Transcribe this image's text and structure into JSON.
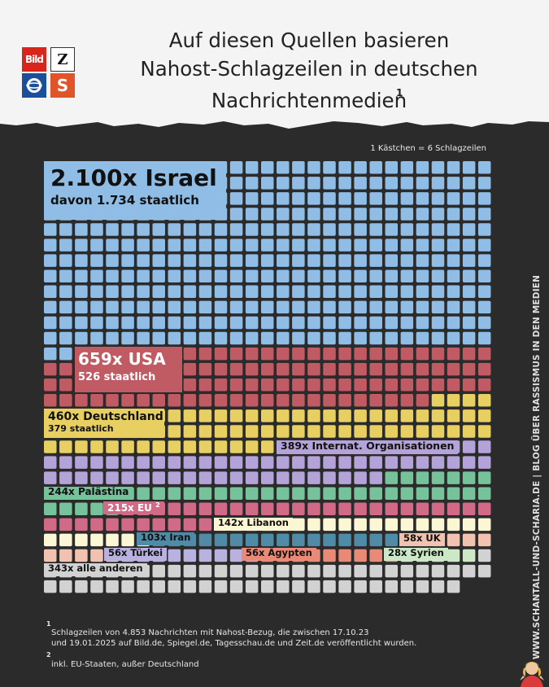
{
  "header": {
    "title_lines": [
      "Auf diesen Quellen basieren",
      "Nahost-Schlagzeilen in deutschen",
      "Nachrichtenmedien"
    ],
    "title_footnote_mark": "1",
    "logos": [
      {
        "name": "bild-logo",
        "text": "Bild",
        "color": "#d8261c"
      },
      {
        "name": "zeit-logo",
        "text": "Z",
        "color": "#ffffff"
      },
      {
        "name": "tagesschau-logo",
        "icon": "globe-icon",
        "color": "#1b4f9b"
      },
      {
        "name": "spiegel-logo",
        "text": "S",
        "color": "#e1542a"
      }
    ]
  },
  "legend_note": "1  Kästchen = 6 Schlagzeilen",
  "chart_data": {
    "type": "waffle",
    "unit_headlines_per_square": 6,
    "columns": 29,
    "categories": [
      {
        "key": "israel",
        "label": "2.100x Israel",
        "sublabel": "davon 1.734 staatlich",
        "value": 2100,
        "squares": 350,
        "color": "#8fbde6"
      },
      {
        "key": "usa",
        "label": "659x USA",
        "sublabel": "526 staatlich",
        "value": 659,
        "squares": 110,
        "color": "#c05a63"
      },
      {
        "key": "de",
        "label": "460x Deutschland",
        "sublabel": "379 staatlich",
        "value": 460,
        "squares": 77,
        "color": "#e7cf62"
      },
      {
        "key": "io",
        "label": "389x Internat. Organisationen",
        "value": 389,
        "squares": 65,
        "color": "#b3a3d9"
      },
      {
        "key": "pal",
        "label": "244x Palästina",
        "value": 244,
        "squares": 41,
        "color": "#76c29a"
      },
      {
        "key": "eu",
        "label": "215x EU",
        "label_footnote_mark": "2",
        "value": 215,
        "squares": 36,
        "color": "#d06a87"
      },
      {
        "key": "lib",
        "label": "142x Libanon",
        "value": 142,
        "squares": 24,
        "color": "#fbf6d4"
      },
      {
        "key": "iran",
        "label": "103x Iran",
        "value": 103,
        "squares": 17,
        "color": "#4f8aa6"
      },
      {
        "key": "uk",
        "label": "58x UK",
        "value": 58,
        "squares": 10,
        "color": "#f2c2b0"
      },
      {
        "key": "tur",
        "label": "56x Türkei",
        "value": 56,
        "squares": 9,
        "color": "#b9b2e0"
      },
      {
        "key": "eg",
        "label": "56x Ägypten",
        "value": 56,
        "squares": 9,
        "color": "#e88a76"
      },
      {
        "key": "syr",
        "label": "28x Syrien",
        "value": 28,
        "squares": 5,
        "color": "#cde8c7"
      },
      {
        "key": "rest",
        "label": "343x alle anderen",
        "value": 343,
        "squares": 57,
        "color": "#d2d2d2"
      }
    ]
  },
  "footnotes": [
    {
      "mark": "1",
      "lines": [
        "Schlagzeilen von 4.853 Nachrichten mit Nahost-Bezug, die zwischen 17.10.23",
        "und 19.01.2025 auf Bild.de, Spiegel.de, Tagesschau.de und Zeit.de veröffentlicht wurden."
      ]
    },
    {
      "mark": "2",
      "lines": [
        "inkl. EU-Staaten, außer Deutschland"
      ]
    }
  ],
  "side_credit": "WWW.SCHANTALL-UND-SCHARIA.DE | BLOG ÜBER RASSISMUS IN DEN MEDIEN"
}
